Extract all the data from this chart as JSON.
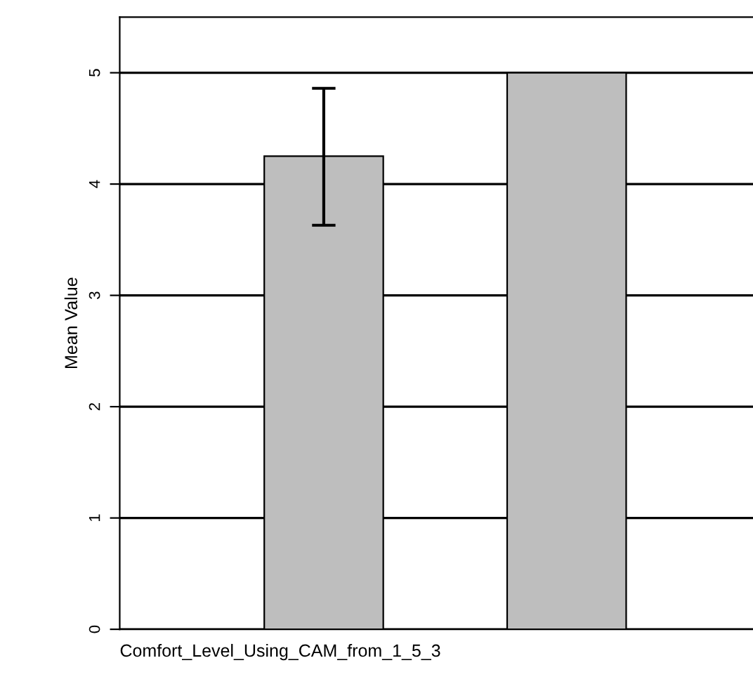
{
  "chart_data": {
    "type": "bar",
    "xlabel": "Comfort_Level_Using_CAM_from_1_5_3",
    "ylabel": "Mean Value",
    "categories": [
      null,
      null
    ],
    "values": [
      4.25,
      5
    ],
    "errors": [
      [
        3.63,
        4.86
      ],
      null
    ],
    "color": "#bebebe",
    "ylim": [
      0,
      5.5
    ],
    "yticks": [
      0,
      1,
      2,
      3,
      4,
      5
    ],
    "grid": "y",
    "legend": false
  }
}
